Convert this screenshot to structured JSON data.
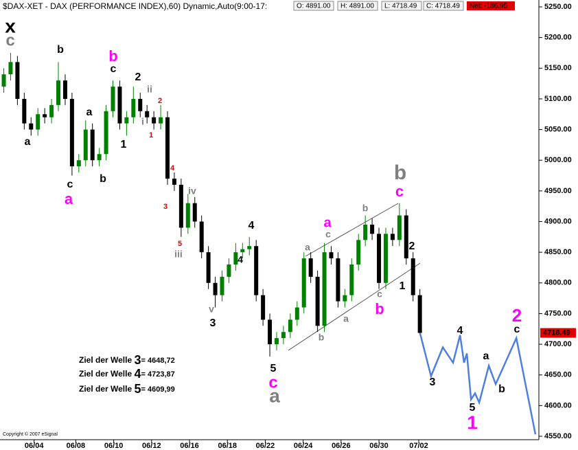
{
  "header": {
    "title": "$DAX-XET - DAX (PERFORMANCE INDEX),60) Dynamic,Auto(9:00-17:",
    "quotes": [
      "O: 4891.00",
      "H: 4891.00",
      "L: 4718.49",
      "C: 4718.49"
    ],
    "net": "Net: -186.95"
  },
  "chart_data": {
    "type": "candlestick",
    "x": [
      0.2,
      0.56,
      0.92,
      1.28,
      1.64,
      2.0,
      2.36,
      2.72,
      3.08,
      3.44,
      3.8,
      4.16,
      4.52,
      4.88,
      5.24,
      5.6,
      5.96,
      6.32,
      6.68,
      7.04,
      7.4,
      7.76,
      8.12,
      8.48,
      8.84,
      9.2,
      9.56,
      9.92,
      10.28,
      10.64,
      11.0,
      11.36,
      11.72,
      12.08,
      12.44,
      12.8,
      13.16,
      13.52,
      13.88,
      14.24,
      14.6,
      14.96,
      15.32,
      15.68,
      16.04,
      16.4,
      16.76,
      17.12,
      17.48,
      17.84,
      18.2,
      18.56,
      18.92,
      19.28,
      19.64,
      20.0,
      20.36,
      20.72,
      21.08,
      21.44,
      21.8,
      22.16
    ],
    "open": [
      5120,
      5140,
      5160,
      5100,
      5060,
      5050,
      5075,
      5070,
      5090,
      5130,
      5100,
      4990,
      5000,
      5050,
      5000,
      5010,
      5080,
      5120,
      5060,
      5070,
      5100,
      5080,
      5070,
      5060,
      5070,
      4970,
      4960,
      4890,
      4930,
      4900,
      4850,
      4800,
      4780,
      4810,
      4830,
      4850,
      4855,
      4860,
      4780,
      4740,
      4700,
      4710,
      4720,
      4740,
      4760,
      4840,
      4810,
      4730,
      4850,
      4840,
      4770,
      4780,
      4830,
      4870,
      4895,
      4880,
      4800,
      4880,
      4870,
      4910,
      4840,
      4780
    ],
    "high": [
      5150,
      5175,
      5170,
      5110,
      5070,
      5085,
      5085,
      5100,
      5160,
      5140,
      5110,
      5010,
      5065,
      5060,
      5020,
      5090,
      5130,
      5130,
      5080,
      5120,
      5110,
      5090,
      5080,
      5090,
      5080,
      4980,
      4970,
      4945,
      4940,
      4910,
      4860,
      4810,
      4820,
      4840,
      4865,
      4865,
      4875,
      4870,
      4790,
      4750,
      4720,
      4730,
      4750,
      4770,
      4850,
      4850,
      4820,
      4865,
      4860,
      4850,
      4790,
      4840,
      4880,
      4910,
      4905,
      4890,
      4890,
      4890,
      4930,
      4920,
      4850,
      4790
    ],
    "low": [
      5110,
      5130,
      5090,
      5050,
      5040,
      5040,
      5060,
      5060,
      5080,
      5090,
      4975,
      4980,
      4990,
      4990,
      4990,
      5000,
      5070,
      5050,
      5040,
      5060,
      5070,
      5060,
      5050,
      5050,
      4960,
      4950,
      4875,
      4880,
      4890,
      4840,
      4790,
      4760,
      4770,
      4800,
      4820,
      4840,
      4845,
      4770,
      4730,
      4680,
      4690,
      4700,
      4710,
      4730,
      4750,
      4800,
      4720,
      4720,
      4830,
      4760,
      4760,
      4770,
      4820,
      4860,
      4870,
      4790,
      4790,
      4860,
      4860,
      4830,
      4770,
      4715
    ],
    "close": [
      5140,
      5160,
      5100,
      5060,
      5050,
      5075,
      5070,
      5090,
      5130,
      5100,
      4990,
      5000,
      5050,
      5000,
      5010,
      5080,
      5120,
      5060,
      5070,
      5100,
      5080,
      5070,
      5060,
      5070,
      4970,
      4960,
      4890,
      4930,
      4900,
      4850,
      4800,
      4780,
      4810,
      4830,
      4850,
      4855,
      4860,
      4780,
      4740,
      4700,
      4710,
      4720,
      4740,
      4760,
      4840,
      4810,
      4730,
      4850,
      4840,
      4770,
      4780,
      4830,
      4870,
      4895,
      4880,
      4800,
      4880,
      4870,
      4910,
      4840,
      4780,
      4718.49
    ],
    "up_color": "#008000",
    "down_color": "#000000",
    "xlim": [
      0,
      28.44
    ],
    "xticks": [
      {
        "value": 1.8,
        "label": "06/04"
      },
      {
        "value": 4,
        "label": "06/08"
      },
      {
        "value": 6,
        "label": "06/10"
      },
      {
        "value": 8,
        "label": "06/12"
      },
      {
        "value": 10,
        "label": "06/16"
      },
      {
        "value": 12,
        "label": "06/18"
      },
      {
        "value": 14,
        "label": "06/22"
      },
      {
        "value": 16,
        "label": "06/24"
      },
      {
        "value": 18,
        "label": "06/26"
      },
      {
        "value": 20,
        "label": "06/30"
      },
      {
        "value": 22.1,
        "label": "07/02"
      }
    ],
    "ylim": [
      4550,
      5250
    ],
    "yticks": [
      {
        "value": 4550,
        "label": "4550.00"
      },
      {
        "value": 4600,
        "label": "4600.00"
      },
      {
        "value": 4650,
        "label": "4650.00"
      },
      {
        "value": 4700,
        "label": "4700.00"
      },
      {
        "value": 4750,
        "label": "4750.00"
      },
      {
        "value": 4800,
        "label": "4800.00"
      },
      {
        "value": 4850,
        "label": "4850.00"
      },
      {
        "value": 4900,
        "label": "4900.00"
      },
      {
        "value": 4950,
        "label": "4950.00"
      },
      {
        "value": 5000,
        "label": "5000.00"
      },
      {
        "value": 5050,
        "label": "5050.00"
      },
      {
        "value": 5100,
        "label": "5100.00"
      },
      {
        "value": 5150,
        "label": "5150.00"
      },
      {
        "value": 5200,
        "label": "5200.00"
      },
      {
        "value": 5250,
        "label": "5250.00"
      }
    ],
    "last_price": 4718.49,
    "projection": {
      "color": "#4f7fdc",
      "x": [
        22.17,
        22.75,
        23.37,
        23.91,
        24.28,
        24.49,
        24.64,
        24.86,
        25.07,
        25.29,
        25.8,
        26.16,
        27.25,
        28.26
      ],
      "values": [
        4718,
        4648,
        4695,
        4670,
        4715,
        4670,
        4685,
        4610,
        4620,
        4605,
        4665,
        4635,
        4710,
        4553
      ]
    },
    "annotations": [
      {
        "text": "x",
        "color": "#000000"
      },
      {
        "text": "c",
        "color": "#808080"
      },
      {
        "text": "b",
        "color": "#000000"
      },
      {
        "text": "b",
        "color": "#ff00ff"
      },
      {
        "text": "c",
        "color": "#000000"
      },
      {
        "text": "2",
        "color": "#000000"
      },
      {
        "text": "ii",
        "color": "#808080"
      },
      {
        "text": "2",
        "color": "#e00000"
      },
      {
        "text": "a",
        "color": "#000000"
      },
      {
        "text": "a",
        "color": "#000000"
      },
      {
        "text": "1",
        "color": "#000000"
      },
      {
        "text": "1",
        "color": "#e00000"
      },
      {
        "text": "i",
        "color": "#808080"
      },
      {
        "text": "c",
        "color": "#000000"
      },
      {
        "text": "b",
        "color": "#000000"
      },
      {
        "text": "a",
        "color": "#ff00ff"
      },
      {
        "text": "4",
        "color": "#e00000"
      },
      {
        "text": "3",
        "color": "#e00000"
      },
      {
        "text": "iv",
        "color": "#808080"
      },
      {
        "text": "5",
        "color": "#e00000"
      },
      {
        "text": "iii",
        "color": "#808080"
      },
      {
        "text": "v",
        "color": "#808080"
      },
      {
        "text": "3",
        "color": "#000000"
      },
      {
        "text": "4",
        "color": "#000000"
      },
      {
        "text": "4",
        "color": "#000000"
      },
      {
        "text": "5",
        "color": "#000000"
      },
      {
        "text": "c",
        "color": "#ff00ff"
      },
      {
        "text": "a",
        "color": "#808080"
      },
      {
        "text": "a",
        "color": "#808080"
      },
      {
        "text": "c",
        "color": "#808080"
      },
      {
        "text": "a",
        "color": "#ff00ff"
      },
      {
        "text": "b",
        "color": "#808080"
      },
      {
        "text": "b",
        "color": "#808080"
      },
      {
        "text": "a",
        "color": "#808080"
      },
      {
        "text": "c",
        "color": "#808080"
      },
      {
        "text": "b",
        "color": "#ff00ff"
      },
      {
        "text": "1",
        "color": "#000000"
      },
      {
        "text": "2",
        "color": "#000000"
      },
      {
        "text": "b",
        "color": "#808080"
      },
      {
        "text": "c",
        "color": "#ff00ff"
      },
      {
        "text": "4",
        "color": "#000000"
      },
      {
        "text": "3",
        "color": "#000000"
      },
      {
        "text": "a",
        "color": "#000000"
      },
      {
        "text": "5",
        "color": "#000000"
      },
      {
        "text": "1",
        "color": "#ff00ff"
      },
      {
        "text": "b",
        "color": "#000000"
      },
      {
        "text": "c",
        "color": "#000000"
      },
      {
        "text": "2",
        "color": "#ff00ff"
      }
    ],
    "targets": [
      {
        "label": "Ziel der Welle ",
        "wave": "3",
        "value": "= 4648,72"
      },
      {
        "label": "Ziel der Welle ",
        "wave": "4",
        "value": "= 4723,87"
      },
      {
        "label": "Ziel der Welle ",
        "wave": "5",
        "value": "= 4609,99"
      }
    ],
    "copyright": "Copyright © 2007 eSignal"
  }
}
